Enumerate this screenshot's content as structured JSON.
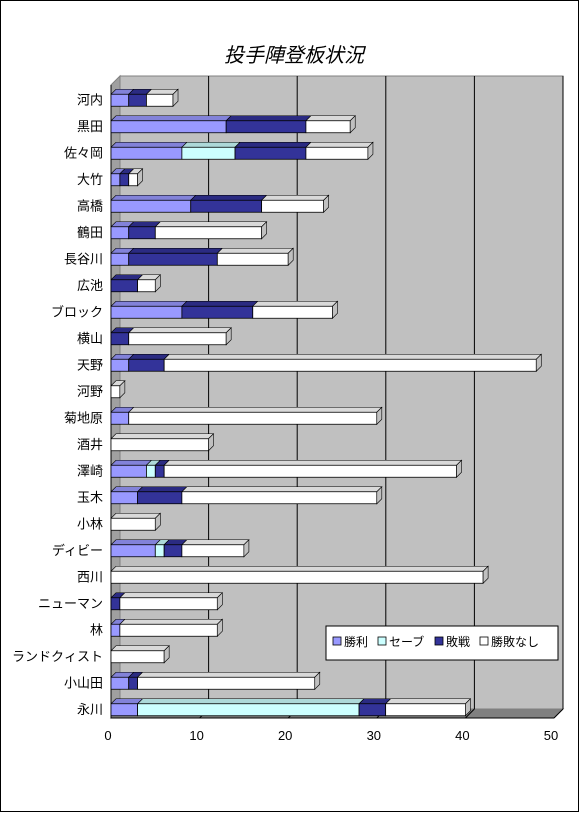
{
  "chart_data": {
    "type": "bar",
    "orientation": "horizontal",
    "stacked": true,
    "title": "投手陣登板状況",
    "xlabel": "",
    "ylabel": "",
    "xlim": [
      0,
      50
    ],
    "xticks": [
      0,
      10,
      20,
      30,
      40,
      50
    ],
    "grid": true,
    "legend_position": "bottom-right",
    "categories": [
      "河内",
      "黒田",
      "佐々岡",
      "大竹",
      "高橋",
      "鶴田",
      "長谷川",
      "広池",
      "ブロック",
      "横山",
      "天野",
      "河野",
      "菊地原",
      "酒井",
      "澤崎",
      "玉木",
      "小林",
      "ディビー",
      "西川",
      "ニューマン",
      "林",
      "ランドクィスト",
      "小山田",
      "永川"
    ],
    "series": [
      {
        "name": "勝利",
        "color": "#9999ff",
        "values": [
          2,
          13,
          8,
          1,
          9,
          2,
          2,
          0,
          8,
          0,
          2,
          0,
          2,
          0,
          4,
          3,
          0,
          5,
          0,
          0,
          1,
          0,
          2,
          3
        ]
      },
      {
        "name": "セーブ",
        "color": "#ccffff",
        "values": [
          0,
          0,
          6,
          0,
          0,
          0,
          0,
          0,
          0,
          0,
          0,
          0,
          0,
          0,
          1,
          0,
          0,
          1,
          0,
          0,
          0,
          0,
          0,
          25
        ]
      },
      {
        "name": "敗戦",
        "color": "#333399",
        "values": [
          2,
          9,
          8,
          1,
          8,
          3,
          10,
          3,
          8,
          2,
          4,
          0,
          0,
          0,
          1,
          5,
          0,
          2,
          0,
          1,
          0,
          0,
          1,
          3
        ]
      },
      {
        "name": "勝敗なし",
        "color": "#ffffff",
        "values": [
          3,
          5,
          7,
          1,
          7,
          12,
          8,
          2,
          9,
          11,
          42,
          1,
          28,
          11,
          33,
          22,
          5,
          7,
          42,
          11,
          11,
          6,
          20,
          9
        ]
      }
    ]
  }
}
